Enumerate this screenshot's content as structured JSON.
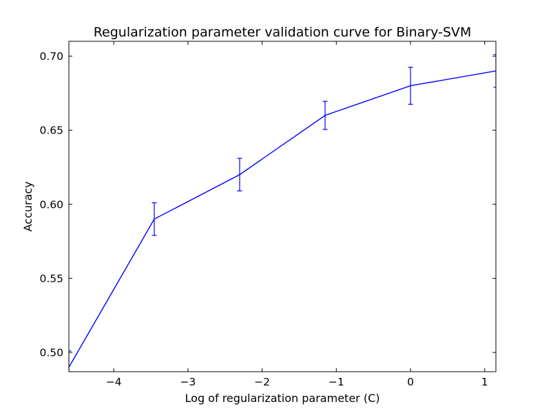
{
  "chart_data": {
    "type": "line",
    "title": "Regularization parameter validation curve for Binary-SVM",
    "xlabel": "Log of regularization parameter (C)",
    "ylabel": "Accuracy",
    "xlim": [
      -4.605,
      1.151
    ],
    "ylim": [
      0.487,
      0.71
    ],
    "grid": false,
    "color": "#0000ff",
    "x_ticks": [
      {
        "value": -4,
        "label": "−4"
      },
      {
        "value": -3,
        "label": "−3"
      },
      {
        "value": -2,
        "label": "−2"
      },
      {
        "value": -1,
        "label": "−1"
      },
      {
        "value": 0,
        "label": "0"
      },
      {
        "value": 1,
        "label": "1"
      }
    ],
    "y_ticks": [
      {
        "value": 0.5,
        "label": "0.50"
      },
      {
        "value": 0.55,
        "label": "0.55"
      },
      {
        "value": 0.6,
        "label": "0.60"
      },
      {
        "value": 0.65,
        "label": "0.65"
      },
      {
        "value": 0.7,
        "label": "0.70"
      }
    ],
    "series": [
      {
        "x": [
          -4.605,
          -3.454,
          -2.303,
          -1.151,
          0,
          1.151
        ],
        "y": [
          0.49,
          0.59,
          0.62,
          0.66,
          0.68,
          0.69
        ],
        "yerr": [
          0.011,
          0.011,
          0.011,
          0.0095,
          0.0125,
          0.011
        ]
      }
    ]
  }
}
